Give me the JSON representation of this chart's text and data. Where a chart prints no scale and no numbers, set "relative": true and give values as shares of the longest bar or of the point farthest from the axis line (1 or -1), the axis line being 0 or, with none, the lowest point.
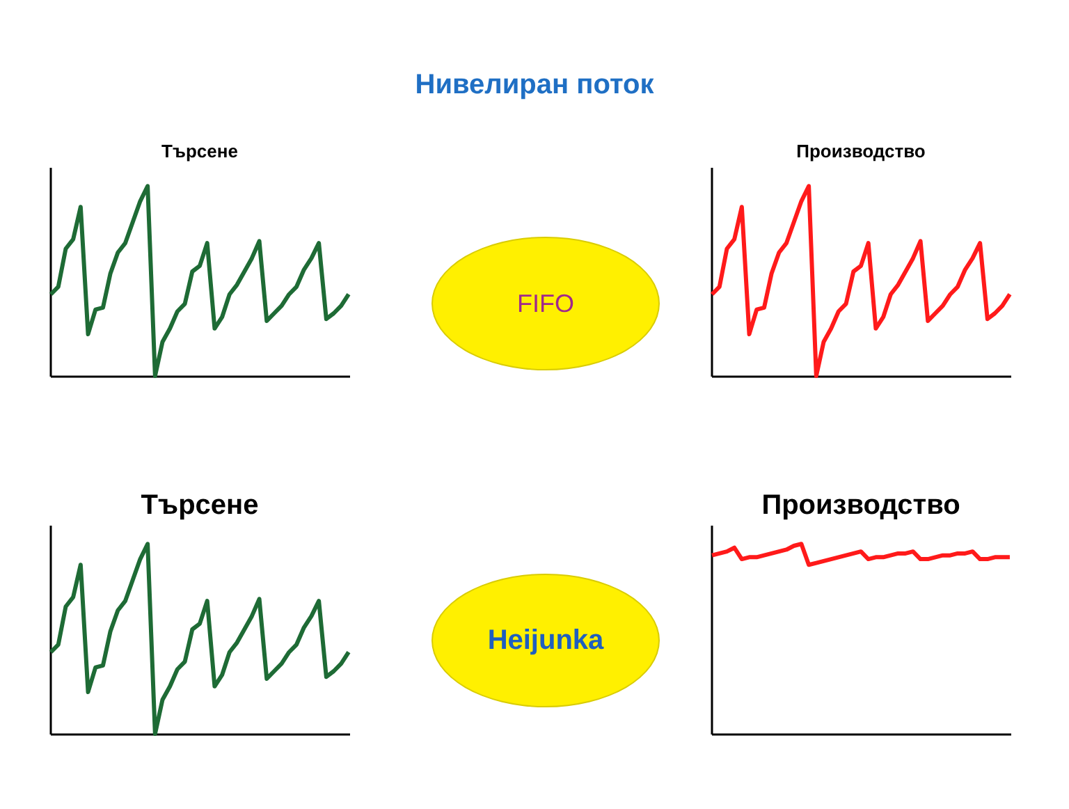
{
  "chart_data": [
    {
      "type": "other",
      "title": "Нивелиран поток"
    },
    {
      "type": "line",
      "title": "Търсене",
      "relative": true,
      "tick_labels": false,
      "categories": [
        null,
        null,
        null,
        null,
        null,
        null,
        null,
        null,
        null,
        null,
        null,
        null,
        null,
        null,
        null,
        null,
        null,
        null,
        null,
        null,
        null,
        null,
        null,
        null,
        null,
        null,
        null,
        null,
        null,
        null,
        null,
        null,
        null,
        null,
        null,
        null,
        null,
        null,
        null,
        null,
        null
      ],
      "series": [
        {
          "color": "#1e6b35",
          "values": [
            0.43,
            0.47,
            0.67,
            0.72,
            0.89,
            0.22,
            0.35,
            0.36,
            0.54,
            0.65,
            0.7,
            0.81,
            0.92,
            1.0,
            0.0,
            0.18,
            0.25,
            0.34,
            0.38,
            0.55,
            0.58,
            0.7,
            0.25,
            0.31,
            0.43,
            0.48,
            0.55,
            0.62,
            0.71,
            0.29,
            0.33,
            0.37,
            0.43,
            0.47,
            0.56,
            0.62,
            0.7,
            0.3,
            0.33,
            0.37,
            0.43
          ]
        }
      ]
    },
    {
      "type": "other",
      "annotations": [
        "FIFO"
      ]
    },
    {
      "type": "line",
      "title": "Производство",
      "relative": true,
      "tick_labels": false,
      "categories": [
        null,
        null,
        null,
        null,
        null,
        null,
        null,
        null,
        null,
        null,
        null,
        null,
        null,
        null,
        null,
        null,
        null,
        null,
        null,
        null,
        null,
        null,
        null,
        null,
        null,
        null,
        null,
        null,
        null,
        null,
        null,
        null,
        null,
        null,
        null,
        null,
        null,
        null,
        null,
        null,
        null
      ],
      "series": [
        {
          "color": "#ff1a1a",
          "values": [
            0.43,
            0.47,
            0.67,
            0.72,
            0.89,
            0.22,
            0.35,
            0.36,
            0.54,
            0.65,
            0.7,
            0.81,
            0.92,
            1.0,
            0.0,
            0.18,
            0.25,
            0.34,
            0.38,
            0.55,
            0.58,
            0.7,
            0.25,
            0.31,
            0.43,
            0.48,
            0.55,
            0.62,
            0.71,
            0.29,
            0.33,
            0.37,
            0.43,
            0.47,
            0.56,
            0.62,
            0.7,
            0.3,
            0.33,
            0.37,
            0.43
          ]
        }
      ]
    },
    {
      "type": "line",
      "title": "Търсене",
      "relative": true,
      "tick_labels": false,
      "categories": [
        null,
        null,
        null,
        null,
        null,
        null,
        null,
        null,
        null,
        null,
        null,
        null,
        null,
        null,
        null,
        null,
        null,
        null,
        null,
        null,
        null,
        null,
        null,
        null,
        null,
        null,
        null,
        null,
        null,
        null,
        null,
        null,
        null,
        null,
        null,
        null,
        null,
        null,
        null,
        null,
        null
      ],
      "series": [
        {
          "color": "#1e6b35",
          "values": [
            0.43,
            0.47,
            0.67,
            0.72,
            0.89,
            0.22,
            0.35,
            0.36,
            0.54,
            0.65,
            0.7,
            0.81,
            0.92,
            1.0,
            0.0,
            0.18,
            0.25,
            0.34,
            0.38,
            0.55,
            0.58,
            0.7,
            0.25,
            0.31,
            0.43,
            0.48,
            0.55,
            0.62,
            0.71,
            0.29,
            0.33,
            0.37,
            0.43,
            0.47,
            0.56,
            0.62,
            0.7,
            0.3,
            0.33,
            0.37,
            0.43
          ]
        }
      ]
    },
    {
      "type": "other",
      "annotations": [
        "Heijunka"
      ]
    },
    {
      "type": "line",
      "title": "Производство",
      "relative": true,
      "tick_labels": false,
      "categories": [
        null,
        null,
        null,
        null,
        null,
        null,
        null,
        null,
        null,
        null,
        null,
        null,
        null,
        null,
        null,
        null,
        null,
        null,
        null,
        null,
        null,
        null,
        null,
        null,
        null,
        null,
        null,
        null,
        null,
        null,
        null,
        null,
        null,
        null,
        null,
        null,
        null,
        null,
        null,
        null,
        null
      ],
      "series": [
        {
          "color": "#ff1a1a",
          "values": [
            0.94,
            0.95,
            0.96,
            0.98,
            0.92,
            0.93,
            0.93,
            0.94,
            0.95,
            0.96,
            0.97,
            0.99,
            1.0,
            0.89,
            0.9,
            0.91,
            0.92,
            0.93,
            0.94,
            0.95,
            0.96,
            0.92,
            0.93,
            0.93,
            0.94,
            0.95,
            0.95,
            0.96,
            0.92,
            0.92,
            0.93,
            0.94,
            0.94,
            0.95,
            0.95,
            0.96,
            0.92,
            0.92,
            0.93,
            0.93,
            0.93
          ]
        }
      ]
    }
  ]
}
